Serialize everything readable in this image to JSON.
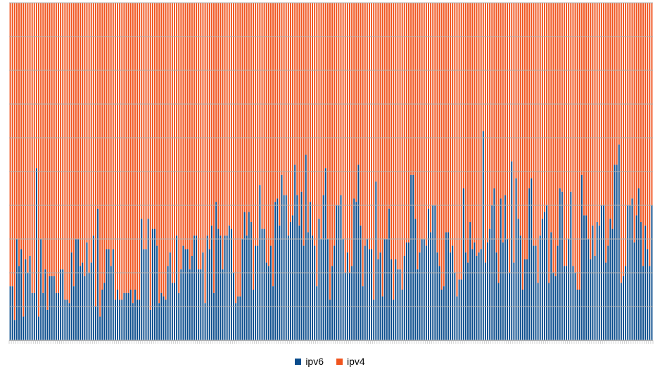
{
  "chart_data": {
    "type": "bar",
    "stacked": true,
    "percent_stacked": true,
    "title": "",
    "xlabel": "",
    "ylabel": "",
    "ylim": [
      0,
      100
    ],
    "grid": true,
    "legend_position": "bottom",
    "colors": {
      "ipv6": "#0a4c8c",
      "ipv4": "#f0541e",
      "grid": "#b3b3b3"
    },
    "series": [
      {
        "name": "ipv6",
        "values": [
          16,
          16,
          6,
          30,
          22,
          27,
          7,
          24,
          20,
          25,
          14,
          14,
          51,
          7,
          30,
          14,
          21,
          9,
          19,
          19,
          19,
          14,
          14,
          21,
          21,
          12,
          12,
          11,
          26,
          16,
          30,
          30,
          22,
          23,
          19,
          29,
          20,
          23,
          31,
          10,
          39,
          7,
          15,
          17,
          27,
          27,
          22,
          27,
          12,
          15,
          12,
          12,
          14,
          14,
          14,
          15,
          11,
          15,
          12,
          12,
          36,
          27,
          27,
          36,
          9,
          33,
          33,
          28,
          11,
          14,
          13,
          12,
          22,
          26,
          17,
          17,
          31,
          14,
          21,
          28,
          27,
          27,
          21,
          25,
          31,
          31,
          21,
          21,
          26,
          11,
          31,
          27,
          34,
          14,
          41,
          33,
          31,
          21,
          31,
          31,
          34,
          33,
          20,
          11,
          13,
          13,
          30,
          38,
          31,
          38,
          35,
          15,
          28,
          28,
          46,
          33,
          33,
          23,
          22,
          28,
          16,
          41,
          42,
          34,
          49,
          43,
          43,
          31,
          35,
          37,
          52,
          43,
          34,
          44,
          28,
          55,
          32,
          41,
          31,
          28,
          16,
          36,
          30,
          43,
          51,
          30,
          12,
          22,
          28,
          40,
          40,
          43,
          30,
          20,
          26,
          20,
          22,
          42,
          41,
          52,
          34,
          16,
          28,
          30,
          27,
          27,
          12,
          47,
          24,
          26,
          13,
          30,
          30,
          39,
          24,
          12,
          24,
          21,
          21,
          15,
          25,
          29,
          29,
          49,
          49,
          36,
          21,
          26,
          30,
          30,
          28,
          39,
          32,
          40,
          40,
          26,
          22,
          15,
          16,
          32,
          32,
          26,
          28,
          20,
          13,
          18,
          18,
          45,
          26,
          23,
          35,
          27,
          29,
          25,
          26,
          27,
          62,
          23,
          29,
          33,
          40,
          45,
          26,
          17,
          42,
          29,
          43,
          30,
          20,
          53,
          23,
          48,
          36,
          31,
          15,
          24,
          24,
          45,
          48,
          28,
          28,
          17,
          31,
          36,
          38,
          40,
          17,
          32,
          20,
          19,
          28,
          45,
          44,
          22,
          22,
          30,
          44,
          22,
          20,
          15,
          15,
          49,
          37,
          37,
          30,
          24,
          34,
          25,
          35,
          34,
          40,
          40,
          23,
          28,
          36,
          33,
          52,
          52,
          58,
          17,
          19,
          22,
          40,
          40,
          42,
          29,
          37,
          45,
          35,
          22,
          34,
          27,
          22,
          40
        ]
      },
      {
        "name": "ipv4",
        "values": [
          84,
          84,
          94,
          70,
          78,
          73,
          93,
          76,
          80,
          75,
          86,
          86,
          49,
          93,
          70,
          86,
          79,
          91,
          81,
          81,
          81,
          86,
          86,
          79,
          79,
          88,
          88,
          89,
          74,
          84,
          70,
          70,
          78,
          77,
          81,
          71,
          80,
          77,
          69,
          90,
          61,
          93,
          85,
          83,
          73,
          73,
          78,
          73,
          88,
          85,
          88,
          88,
          86,
          86,
          86,
          85,
          89,
          85,
          88,
          88,
          64,
          73,
          73,
          64,
          91,
          67,
          67,
          72,
          89,
          86,
          87,
          88,
          78,
          74,
          83,
          83,
          69,
          86,
          79,
          72,
          73,
          73,
          79,
          75,
          69,
          69,
          79,
          79,
          74,
          89,
          69,
          73,
          66,
          86,
          59,
          67,
          69,
          79,
          69,
          69,
          66,
          67,
          80,
          89,
          87,
          87,
          70,
          62,
          69,
          62,
          65,
          85,
          72,
          72,
          54,
          67,
          67,
          77,
          78,
          72,
          84,
          59,
          58,
          66,
          51,
          57,
          57,
          69,
          65,
          63,
          48,
          57,
          66,
          56,
          72,
          45,
          68,
          59,
          69,
          72,
          84,
          64,
          70,
          57,
          49,
          70,
          88,
          78,
          72,
          60,
          60,
          57,
          70,
          80,
          74,
          80,
          78,
          58,
          59,
          48,
          66,
          84,
          72,
          70,
          73,
          73,
          88,
          53,
          76,
          74,
          87,
          70,
          70,
          61,
          76,
          88,
          76,
          79,
          79,
          85,
          75,
          71,
          71,
          51,
          51,
          64,
          79,
          74,
          70,
          70,
          72,
          61,
          68,
          60,
          60,
          74,
          78,
          85,
          84,
          68,
          68,
          74,
          72,
          80,
          87,
          82,
          82,
          55,
          74,
          77,
          65,
          73,
          71,
          75,
          74,
          73,
          38,
          77,
          71,
          67,
          60,
          55,
          74,
          83,
          58,
          71,
          57,
          70,
          80,
          47,
          77,
          52,
          64,
          69,
          85,
          76,
          76,
          55,
          52,
          72,
          72,
          83,
          69,
          64,
          62,
          60,
          83,
          68,
          80,
          81,
          72,
          55,
          56,
          78,
          78,
          70,
          56,
          78,
          80,
          85,
          85,
          51,
          63,
          63,
          70,
          76,
          66,
          75,
          65,
          66,
          60,
          60,
          77,
          72,
          64,
          67,
          48,
          48,
          42,
          83,
          81,
          78,
          60,
          60,
          58,
          71,
          63,
          55,
          65,
          78,
          66,
          73,
          78,
          60
        ]
      }
    ]
  }
}
